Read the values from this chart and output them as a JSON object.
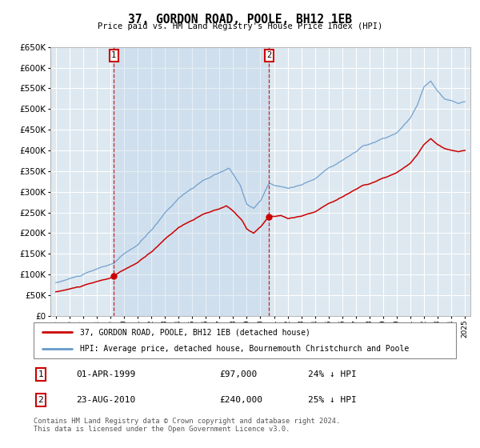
{
  "title": "37, GORDON ROAD, POOLE, BH12 1EB",
  "subtitle": "Price paid vs. HM Land Registry's House Price Index (HPI)",
  "ylim": [
    0,
    650000
  ],
  "yticks": [
    0,
    50000,
    100000,
    150000,
    200000,
    250000,
    300000,
    350000,
    400000,
    450000,
    500000,
    550000,
    600000,
    650000
  ],
  "sale1_date": 1999.25,
  "sale1_price": 97000,
  "sale2_date": 2010.64,
  "sale2_price": 240000,
  "legend_line1": "37, GORDON ROAD, POOLE, BH12 1EB (detached house)",
  "legend_line2": "HPI: Average price, detached house, Bournemouth Christchurch and Poole",
  "annot1_date": "01-APR-1999",
  "annot1_price": "£97,000",
  "annot1_hpi": "24% ↓ HPI",
  "annot2_date": "23-AUG-2010",
  "annot2_price": "£240,000",
  "annot2_hpi": "25% ↓ HPI",
  "footer": "Contains HM Land Registry data © Crown copyright and database right 2024.\nThis data is licensed under the Open Government Licence v3.0.",
  "line_red_color": "#cc0000",
  "line_blue_color": "#6699cc",
  "bg_color": "#dde8f0",
  "fill_color": "#d0dff0",
  "grid_color": "#ffffff",
  "vline_color": "#cc0000"
}
